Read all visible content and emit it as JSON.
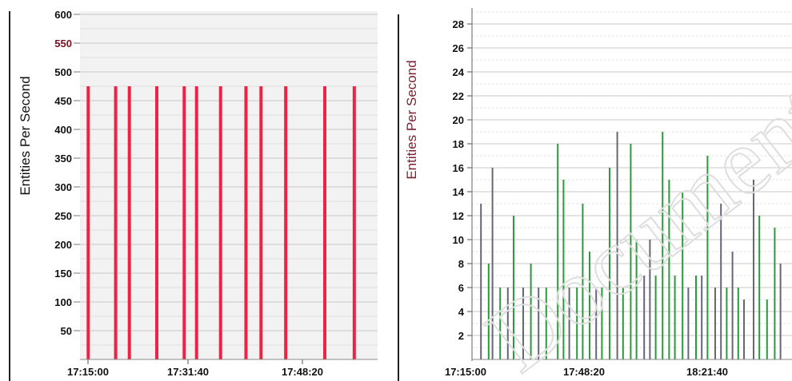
{
  "chart_data": [
    {
      "type": "bar",
      "ylabel": "Entities Per Second",
      "x_ticks": [
        "17:15:00",
        "17:31:40",
        "17:48:20"
      ],
      "y_ticks": [
        "50",
        "100",
        "150",
        "200",
        "250",
        "300",
        "350",
        "400",
        "450",
        "500",
        "550",
        "600"
      ],
      "highlight_tick": "550",
      "ylim": [
        0,
        600
      ],
      "xlim_minutes": [
        0,
        42
      ],
      "grid": true,
      "colors": {
        "bar": "#ee2244",
        "grid": "#c8c8c8",
        "background": "#f2f2f2"
      },
      "bars": [
        {
          "t": 0.5,
          "value": 475
        },
        {
          "t": 4.5,
          "value": 475
        },
        {
          "t": 6.5,
          "value": 475
        },
        {
          "t": 10.5,
          "value": 475
        },
        {
          "t": 14.5,
          "value": 475
        },
        {
          "t": 16.3,
          "value": 475
        },
        {
          "t": 19.8,
          "value": 475
        },
        {
          "t": 23.5,
          "value": 475
        },
        {
          "t": 25.7,
          "value": 475
        },
        {
          "t": 29.3,
          "value": 475
        },
        {
          "t": 35.0,
          "value": 475
        },
        {
          "t": 39.3,
          "value": 475
        }
      ]
    },
    {
      "type": "bar",
      "ylabel": "Entities Per Second",
      "x_ticks": [
        "17:15:00",
        "17:48:20",
        "18:21:40"
      ],
      "y_ticks": [
        "2",
        "4",
        "6",
        "8",
        "10",
        "12",
        "14",
        "16",
        "18",
        "20",
        "22",
        "24",
        "26",
        "28"
      ],
      "ylim": [
        0,
        30
      ],
      "xlim_minutes": [
        0,
        90
      ],
      "grid": true,
      "colors": {
        "green": "#2a9a3a",
        "gray": "#666677",
        "grid": "#c8c8c8",
        "background": "#ffffff"
      },
      "bars": [
        {
          "t": 1.5,
          "value": 13,
          "c": "gray"
        },
        {
          "t": 3.5,
          "value": 8,
          "c": "green"
        },
        {
          "t": 4.5,
          "value": 16,
          "c": "gray"
        },
        {
          "t": 6.5,
          "value": 6,
          "c": "green"
        },
        {
          "t": 8.5,
          "value": 6,
          "c": "gray"
        },
        {
          "t": 10.0,
          "value": 12,
          "c": "green"
        },
        {
          "t": 12.5,
          "value": 6,
          "c": "gray"
        },
        {
          "t": 14.5,
          "value": 8,
          "c": "green"
        },
        {
          "t": 16.5,
          "value": 6,
          "c": "gray"
        },
        {
          "t": 18.5,
          "value": 6,
          "c": "green"
        },
        {
          "t": 21.5,
          "value": 18,
          "c": "green"
        },
        {
          "t": 23.0,
          "value": 15,
          "c": "green"
        },
        {
          "t": 24.5,
          "value": 6,
          "c": "gray"
        },
        {
          "t": 26.5,
          "value": 6,
          "c": "green"
        },
        {
          "t": 28.0,
          "value": 13,
          "c": "green"
        },
        {
          "t": 29.8,
          "value": 9,
          "c": "green"
        },
        {
          "t": 31.5,
          "value": 6,
          "c": "gray"
        },
        {
          "t": 33.0,
          "value": 6,
          "c": "green"
        },
        {
          "t": 35.0,
          "value": 16,
          "c": "green"
        },
        {
          "t": 37.0,
          "value": 19,
          "c": "gray"
        },
        {
          "t": 38.5,
          "value": 6,
          "c": "green"
        },
        {
          "t": 40.5,
          "value": 18,
          "c": "green"
        },
        {
          "t": 42.0,
          "value": 10,
          "c": "green"
        },
        {
          "t": 44.0,
          "value": 7,
          "c": "gray"
        },
        {
          "t": 45.5,
          "value": 10,
          "c": "gray"
        },
        {
          "t": 47.0,
          "value": 7,
          "c": "green"
        },
        {
          "t": 48.8,
          "value": 19,
          "c": "green"
        },
        {
          "t": 50.5,
          "value": 15,
          "c": "green"
        },
        {
          "t": 52.0,
          "value": 7,
          "c": "green"
        },
        {
          "t": 54.0,
          "value": 14,
          "c": "green"
        },
        {
          "t": 55.5,
          "value": 6,
          "c": "gray"
        },
        {
          "t": 57.5,
          "value": 7,
          "c": "green"
        },
        {
          "t": 59.0,
          "value": 7,
          "c": "gray"
        },
        {
          "t": 60.5,
          "value": 17,
          "c": "green"
        },
        {
          "t": 62.5,
          "value": 6,
          "c": "gray"
        },
        {
          "t": 64.0,
          "value": 13,
          "c": "gray"
        },
        {
          "t": 65.5,
          "value": 6,
          "c": "green"
        },
        {
          "t": 67.0,
          "value": 9,
          "c": "gray"
        },
        {
          "t": 68.5,
          "value": 6,
          "c": "green"
        },
        {
          "t": 70.0,
          "value": 5,
          "c": "gray"
        },
        {
          "t": 72.5,
          "value": 15,
          "c": "gray"
        },
        {
          "t": 74.0,
          "value": 12,
          "c": "green"
        },
        {
          "t": 76.0,
          "value": 5,
          "c": "green"
        },
        {
          "t": 78.0,
          "value": 11,
          "c": "green"
        },
        {
          "t": 79.5,
          "value": 8,
          "c": "gray"
        }
      ]
    }
  ],
  "watermark": "Document"
}
